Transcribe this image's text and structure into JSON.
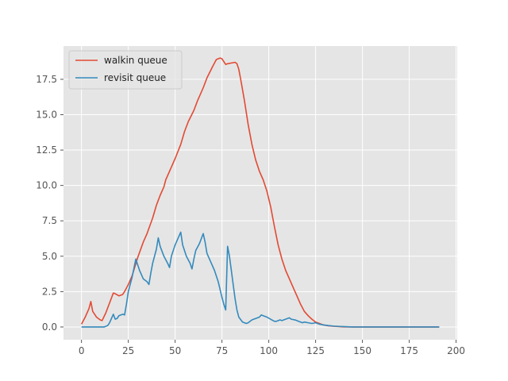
{
  "chart_data": {
    "type": "line",
    "title": "",
    "xlabel": "",
    "ylabel": "",
    "xlim": [
      -9.6,
      200.6
    ],
    "ylim": [
      -0.9,
      19.85
    ],
    "xticks": [
      0,
      25,
      50,
      75,
      100,
      125,
      150,
      175,
      200
    ],
    "yticks": [
      0.0,
      2.5,
      5.0,
      7.5,
      10.0,
      12.5,
      15.0,
      17.5
    ],
    "ytick_labels": [
      "0.0",
      "2.5",
      "5.0",
      "7.5",
      "10.0",
      "12.5",
      "15.0",
      "17.5"
    ],
    "grid": true,
    "legend_position": "top-left",
    "series": [
      {
        "name": "walkin queue",
        "color": "#E24A33",
        "points": [
          [
            0,
            0.2
          ],
          [
            2,
            0.7
          ],
          [
            4,
            1.3
          ],
          [
            5,
            1.8
          ],
          [
            6,
            1.1
          ],
          [
            8,
            0.7
          ],
          [
            10,
            0.5
          ],
          [
            11,
            0.45
          ],
          [
            13,
            1.0
          ],
          [
            15,
            1.7
          ],
          [
            17,
            2.4
          ],
          [
            18,
            2.35
          ],
          [
            20,
            2.2
          ],
          [
            22,
            2.3
          ],
          [
            23,
            2.5
          ],
          [
            25,
            3.0
          ],
          [
            27,
            3.6
          ],
          [
            30,
            4.9
          ],
          [
            33,
            6.0
          ],
          [
            35,
            6.6
          ],
          [
            38,
            7.7
          ],
          [
            40,
            8.6
          ],
          [
            42,
            9.3
          ],
          [
            44,
            9.9
          ],
          [
            45,
            10.4
          ],
          [
            47,
            11.0
          ],
          [
            50,
            11.9
          ],
          [
            53,
            12.9
          ],
          [
            55,
            13.8
          ],
          [
            57,
            14.5
          ],
          [
            60,
            15.3
          ],
          [
            62,
            16.0
          ],
          [
            65,
            16.9
          ],
          [
            67,
            17.6
          ],
          [
            70,
            18.4
          ],
          [
            72,
            18.9
          ],
          [
            74,
            19.0
          ],
          [
            75,
            18.95
          ],
          [
            77,
            18.55
          ],
          [
            78,
            18.6
          ],
          [
            80,
            18.65
          ],
          [
            82,
            18.7
          ],
          [
            83,
            18.6
          ],
          [
            84,
            18.2
          ],
          [
            85,
            17.5
          ],
          [
            87,
            16.0
          ],
          [
            89,
            14.3
          ],
          [
            91,
            12.9
          ],
          [
            93,
            11.8
          ],
          [
            95,
            11.0
          ],
          [
            97,
            10.4
          ],
          [
            99,
            9.6
          ],
          [
            101,
            8.5
          ],
          [
            103,
            7.1
          ],
          [
            105,
            5.8
          ],
          [
            107,
            4.8
          ],
          [
            109,
            4.0
          ],
          [
            111,
            3.4
          ],
          [
            113,
            2.8
          ],
          [
            115,
            2.2
          ],
          [
            117,
            1.6
          ],
          [
            119,
            1.1
          ],
          [
            121,
            0.8
          ],
          [
            123,
            0.55
          ],
          [
            125,
            0.35
          ],
          [
            127,
            0.25
          ],
          [
            129,
            0.15
          ],
          [
            132,
            0.08
          ],
          [
            136,
            0.04
          ],
          [
            140,
            0.01
          ],
          [
            145,
            0
          ],
          [
            191,
            0
          ]
        ]
      },
      {
        "name": "revisit queue",
        "color": "#348ABD",
        "points": [
          [
            0,
            0
          ],
          [
            12,
            0
          ],
          [
            14,
            0.1
          ],
          [
            15,
            0.3
          ],
          [
            16,
            0.6
          ],
          [
            17,
            0.9
          ],
          [
            18,
            0.55
          ],
          [
            19,
            0.6
          ],
          [
            20,
            0.8
          ],
          [
            22,
            0.9
          ],
          [
            23,
            0.85
          ],
          [
            24,
            1.6
          ],
          [
            25,
            2.5
          ],
          [
            27,
            3.5
          ],
          [
            29,
            4.8
          ],
          [
            31,
            4.0
          ],
          [
            33,
            3.4
          ],
          [
            35,
            3.2
          ],
          [
            36,
            3.0
          ],
          [
            37,
            3.8
          ],
          [
            38,
            4.5
          ],
          [
            40,
            5.5
          ],
          [
            41,
            6.3
          ],
          [
            42,
            5.7
          ],
          [
            44,
            5.0
          ],
          [
            46,
            4.5
          ],
          [
            47,
            4.2
          ],
          [
            48,
            5.0
          ],
          [
            50,
            5.8
          ],
          [
            52,
            6.4
          ],
          [
            53,
            6.7
          ],
          [
            54,
            5.8
          ],
          [
            56,
            5.0
          ],
          [
            58,
            4.5
          ],
          [
            59,
            4.1
          ],
          [
            60,
            4.8
          ],
          [
            61,
            5.4
          ],
          [
            63,
            5.9
          ],
          [
            65,
            6.6
          ],
          [
            66,
            6.0
          ],
          [
            67,
            5.2
          ],
          [
            69,
            4.6
          ],
          [
            71,
            4.0
          ],
          [
            73,
            3.2
          ],
          [
            75,
            2.1
          ],
          [
            76,
            1.6
          ],
          [
            77,
            1.2
          ],
          [
            78,
            5.7
          ],
          [
            79,
            5.0
          ],
          [
            80,
            4.0
          ],
          [
            81,
            3.0
          ],
          [
            82,
            2.0
          ],
          [
            83,
            1.2
          ],
          [
            84,
            0.7
          ],
          [
            86,
            0.35
          ],
          [
            88,
            0.25
          ],
          [
            89,
            0.3
          ],
          [
            91,
            0.5
          ],
          [
            93,
            0.6
          ],
          [
            95,
            0.7
          ],
          [
            96,
            0.85
          ],
          [
            97,
            0.8
          ],
          [
            99,
            0.7
          ],
          [
            101,
            0.55
          ],
          [
            103,
            0.4
          ],
          [
            104,
            0.4
          ],
          [
            106,
            0.5
          ],
          [
            107,
            0.45
          ],
          [
            109,
            0.55
          ],
          [
            111,
            0.65
          ],
          [
            112,
            0.55
          ],
          [
            114,
            0.5
          ],
          [
            116,
            0.4
          ],
          [
            118,
            0.3
          ],
          [
            119,
            0.35
          ],
          [
            121,
            0.3
          ],
          [
            123,
            0.25
          ],
          [
            125,
            0.3
          ],
          [
            127,
            0.2
          ],
          [
            129,
            0.15
          ],
          [
            132,
            0.1
          ],
          [
            135,
            0.06
          ],
          [
            138,
            0.04
          ],
          [
            141,
            0.02
          ],
          [
            145,
            0
          ],
          [
            191,
            0
          ]
        ]
      }
    ]
  }
}
